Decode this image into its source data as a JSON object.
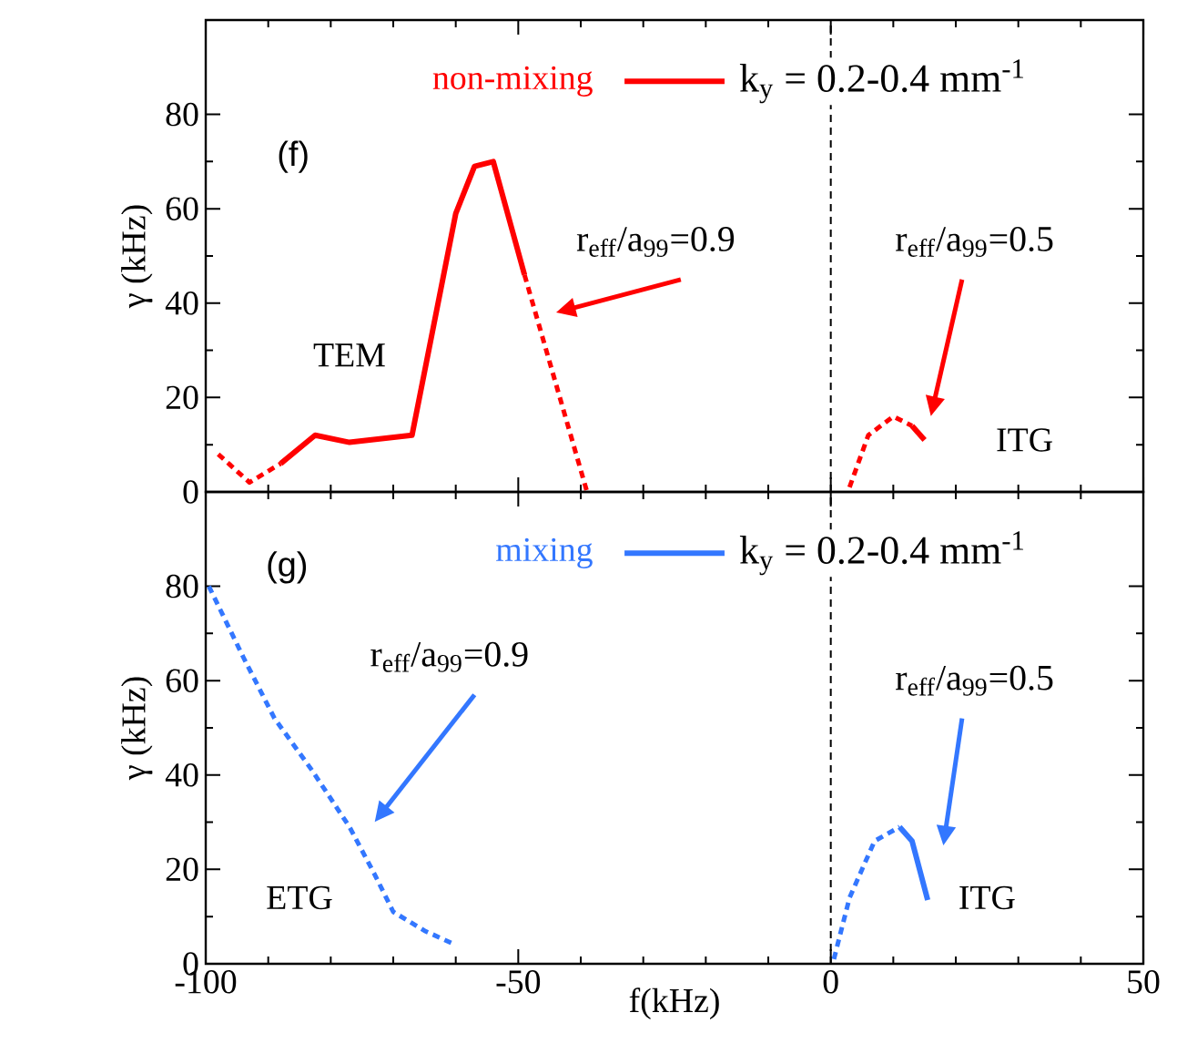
{
  "chart_data": [
    {
      "type": "line",
      "ylabel": "γ (kHz)",
      "xlim": [
        -100,
        50
      ],
      "ylim": [
        0,
        100
      ],
      "xticks": [
        -100,
        -50,
        0,
        50
      ],
      "yticks": [
        0,
        20,
        40,
        60,
        80
      ],
      "tick_labels": "y",
      "legend": "top",
      "legend_title": "non-mixing",
      "ref_lines": [
        {
          "axis": "x",
          "value": 0,
          "color": "#000000",
          "line_style": "dashed"
        }
      ],
      "series": [
        {
          "x": [
            -98,
            -93,
            -88
          ],
          "values": [
            8,
            2,
            6
          ],
          "color": "#ff0000",
          "line_style": "dashed"
        },
        {
          "name": "k$_{y}$ = 0.2-0.4 mm$^{-1}$",
          "x": [
            -88,
            -82.5,
            -77,
            -67,
            -60,
            -57,
            -54,
            -49
          ],
          "values": [
            6,
            12,
            10.5,
            12,
            59,
            69,
            70,
            46
          ],
          "color": "#ff0000",
          "line_style": "solid"
        },
        {
          "x": [
            -49,
            -39
          ],
          "values": [
            46,
            0
          ],
          "color": "#ff0000",
          "line_style": "dashed"
        },
        {
          "x": [
            3,
            6,
            10,
            13
          ],
          "values": [
            1,
            12,
            16,
            14
          ],
          "color": "#ff0000",
          "line_style": "dashed"
        },
        {
          "x": [
            13,
            15
          ],
          "values": [
            14,
            11
          ],
          "color": "#ff0000",
          "line_style": "solid"
        }
      ],
      "annotations": [
        "(f)",
        "TEM",
        "r$_{eff}$/a$_{99}$=0.9",
        "r$_{eff}$/a$_{99}$=0.5",
        "ITG"
      ]
    },
    {
      "type": "line",
      "xlabel": "f(kHz)",
      "ylabel": "γ (kHz)",
      "xlim": [
        -100,
        50
      ],
      "ylim": [
        0,
        100
      ],
      "xticks": [
        -100,
        -50,
        0,
        50
      ],
      "yticks": [
        0,
        20,
        40,
        60,
        80
      ],
      "legend": "top",
      "legend_title": "mixing",
      "ref_lines": [
        {
          "axis": "x",
          "value": 0,
          "color": "#000000",
          "line_style": "dashed"
        }
      ],
      "series": [
        {
          "x": [
            -99.5,
            -94,
            -89,
            -83,
            -77,
            -73,
            -70,
            -65,
            -60
          ],
          "values": [
            80,
            65,
            52,
            41,
            29,
            19,
            11,
            7,
            4
          ],
          "color": "#3377ff",
          "line_style": "dashed"
        },
        {
          "x": [
            0.5,
            3,
            7,
            11
          ],
          "values": [
            1,
            14,
            26,
            29
          ],
          "color": "#3377ff",
          "line_style": "dashed"
        },
        {
          "name": "k$_{y}$ = 0.2-0.4 mm$^{-1}$",
          "x": [
            11,
            13,
            15.5
          ],
          "values": [
            29,
            26,
            13.5
          ],
          "color": "#3377ff",
          "line_style": "solid"
        }
      ],
      "annotations": [
        "(g)",
        "ETG",
        "r$_{eff}$/a$_{99}$=0.9",
        "r$_{eff}$/a$_{99}$=0.5",
        "ITG"
      ]
    }
  ]
}
